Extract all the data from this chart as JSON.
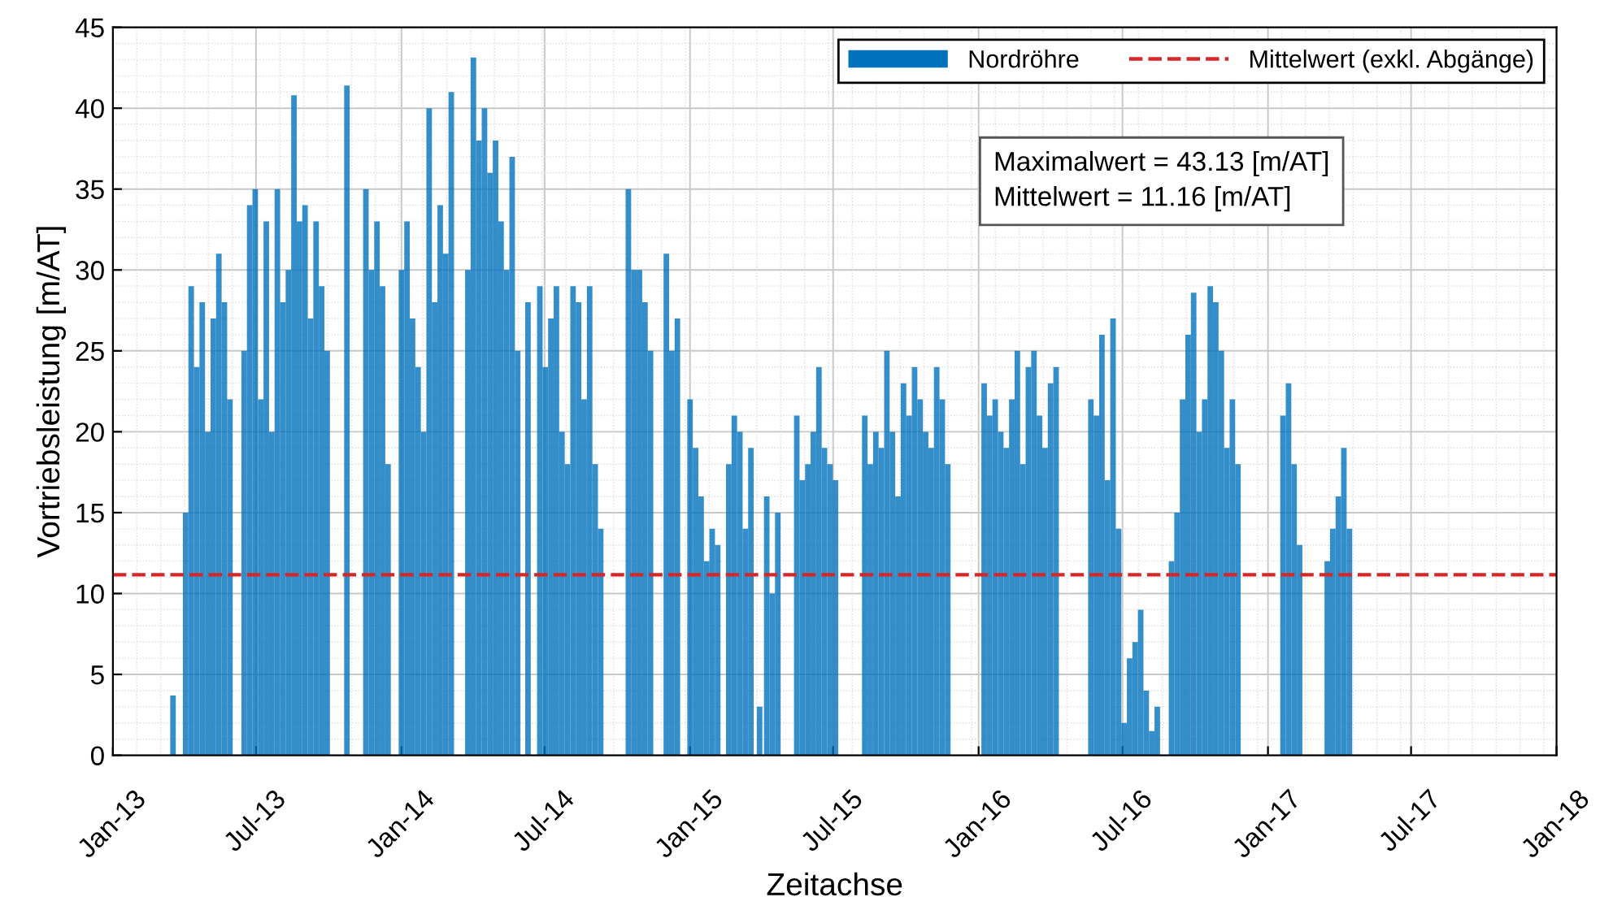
{
  "chart_data": {
    "type": "bar",
    "xlabel": "Zeitachse",
    "ylabel": "Vortriebsleistung [m/AT]",
    "x": [
      "2013-03-18",
      "2013-04-03",
      "2013-04-10",
      "2013-04-17",
      "2013-04-24",
      "2013-05-01",
      "2013-05-08",
      "2013-05-15",
      "2013-05-22",
      "2013-05-29",
      "2013-06-16",
      "2013-06-23",
      "2013-06-30",
      "2013-07-07",
      "2013-07-14",
      "2013-07-21",
      "2013-07-28",
      "2013-08-04",
      "2013-08-11",
      "2013-08-18",
      "2013-08-25",
      "2013-09-01",
      "2013-09-08",
      "2013-09-15",
      "2013-09-22",
      "2013-09-29",
      "2013-10-24",
      "2013-11-17",
      "2013-11-24",
      "2013-12-01",
      "2013-12-08",
      "2013-12-15",
      "2014-01-01",
      "2014-01-08",
      "2014-01-15",
      "2014-01-22",
      "2014-01-29",
      "2014-02-05",
      "2014-02-12",
      "2014-02-19",
      "2014-02-26",
      "2014-03-05",
      "2014-03-26",
      "2014-04-02",
      "2014-04-09",
      "2014-04-16",
      "2014-04-23",
      "2014-04-30",
      "2014-05-07",
      "2014-05-14",
      "2014-05-21",
      "2014-05-28",
      "2014-06-10",
      "2014-06-25",
      "2014-07-02",
      "2014-07-09",
      "2014-07-16",
      "2014-07-23",
      "2014-07-30",
      "2014-08-06",
      "2014-08-13",
      "2014-08-20",
      "2014-08-27",
      "2014-09-03",
      "2014-09-10",
      "2014-10-15",
      "2014-10-22",
      "2014-10-29",
      "2014-11-05",
      "2014-11-12",
      "2014-12-02",
      "2014-12-09",
      "2014-12-16",
      "2015-01-01",
      "2015-01-08",
      "2015-01-15",
      "2015-01-22",
      "2015-01-29",
      "2015-02-05",
      "2015-02-19",
      "2015-02-26",
      "2015-03-05",
      "2015-03-12",
      "2015-03-19",
      "2015-03-30",
      "2015-04-08",
      "2015-04-15",
      "2015-04-22",
      "2015-05-16",
      "2015-05-23",
      "2015-05-30",
      "2015-06-06",
      "2015-06-13",
      "2015-06-20",
      "2015-06-27",
      "2015-07-04",
      "2015-08-10",
      "2015-08-17",
      "2015-08-24",
      "2015-08-31",
      "2015-09-07",
      "2015-09-14",
      "2015-09-21",
      "2015-09-28",
      "2015-10-05",
      "2015-10-12",
      "2015-10-19",
      "2015-10-26",
      "2015-11-02",
      "2015-11-09",
      "2015-11-16",
      "2015-11-23",
      "2016-01-08",
      "2016-01-15",
      "2016-01-22",
      "2016-01-29",
      "2016-02-05",
      "2016-02-12",
      "2016-02-19",
      "2016-02-26",
      "2016-03-04",
      "2016-03-11",
      "2016-03-18",
      "2016-03-25",
      "2016-04-01",
      "2016-04-08",
      "2016-05-22",
      "2016-05-29",
      "2016-06-05",
      "2016-06-12",
      "2016-06-19",
      "2016-06-26",
      "2016-07-03",
      "2016-07-10",
      "2016-07-17",
      "2016-07-24",
      "2016-07-31",
      "2016-08-07",
      "2016-08-14",
      "2016-09-01",
      "2016-09-08",
      "2016-09-15",
      "2016-09-22",
      "2016-09-29",
      "2016-10-06",
      "2016-10-13",
      "2016-10-20",
      "2016-10-27",
      "2016-11-03",
      "2016-11-10",
      "2016-11-17",
      "2016-11-24",
      "2017-01-20",
      "2017-01-27",
      "2017-02-03",
      "2017-02-10",
      "2017-03-17",
      "2017-03-24",
      "2017-03-31",
      "2017-04-07",
      "2017-04-14"
    ],
    "series": [
      {
        "name": "Nordröhre",
        "color": "#0072bd",
        "values": [
          3.7,
          15,
          29,
          24,
          28,
          20,
          27,
          31,
          28,
          22,
          25,
          34,
          35,
          22,
          33,
          20,
          35,
          28,
          30,
          40.8,
          33,
          34,
          27,
          33,
          29,
          25,
          41.4,
          35,
          30,
          33,
          29,
          18,
          30,
          33,
          27,
          24,
          20,
          40,
          28,
          34,
          31,
          41,
          30,
          43.13,
          38,
          40,
          36,
          38,
          33,
          30,
          37,
          25,
          28,
          29,
          24,
          27,
          29,
          20,
          18,
          29,
          28,
          22,
          29,
          18,
          14,
          35,
          30,
          30,
          28,
          25,
          31,
          25,
          27,
          22,
          19,
          16,
          12,
          14,
          13,
          18,
          21,
          20,
          14,
          19,
          3,
          16,
          10,
          15,
          21,
          17,
          18,
          20,
          24,
          19,
          18,
          17,
          21,
          18,
          20,
          19,
          25,
          20,
          16,
          23,
          21,
          24,
          22,
          20,
          19,
          24,
          22,
          18,
          23,
          21,
          22,
          20,
          19,
          22,
          25,
          18,
          24,
          25,
          21,
          19,
          23,
          24,
          22,
          21,
          26,
          17,
          27,
          14,
          2,
          6,
          7,
          9,
          4,
          1.5,
          3,
          12,
          15,
          22,
          26,
          28.6,
          20,
          22,
          29,
          28,
          25,
          19,
          22,
          18,
          21,
          23,
          18,
          13,
          12,
          14,
          16,
          19,
          14
        ]
      }
    ],
    "ref_lines": [
      {
        "axis": "y",
        "value": 11.16,
        "label": "Mittelwert (exkl. Abgänge)",
        "color": "#d62728",
        "line_style": "dashed"
      }
    ],
    "annotations": [
      "Maximalwert = 43.13 [m/AT]",
      "Mittelwert = 11.16 [m/AT]"
    ],
    "xlim": [
      "2013-01-01",
      "2018-01-01"
    ],
    "xticks": [
      {
        "value": "2013-01-01",
        "label": "Jan-13"
      },
      {
        "value": "2013-07-01",
        "label": "Jul-13"
      },
      {
        "value": "2014-01-01",
        "label": "Jan-14"
      },
      {
        "value": "2014-07-01",
        "label": "Jul-14"
      },
      {
        "value": "2015-01-01",
        "label": "Jan-15"
      },
      {
        "value": "2015-07-01",
        "label": "Jul-15"
      },
      {
        "value": "2016-01-01",
        "label": "Jan-16"
      },
      {
        "value": "2016-07-01",
        "label": "Jul-16"
      },
      {
        "value": "2017-01-01",
        "label": "Jan-17"
      },
      {
        "value": "2017-07-01",
        "label": "Jul-17"
      },
      {
        "value": "2018-01-01",
        "label": "Jan-18"
      }
    ],
    "ylim": [
      0,
      45
    ],
    "yticks": [
      0,
      5,
      10,
      15,
      20,
      25,
      30,
      35,
      40,
      45
    ],
    "grid": true,
    "legend": "top right"
  }
}
